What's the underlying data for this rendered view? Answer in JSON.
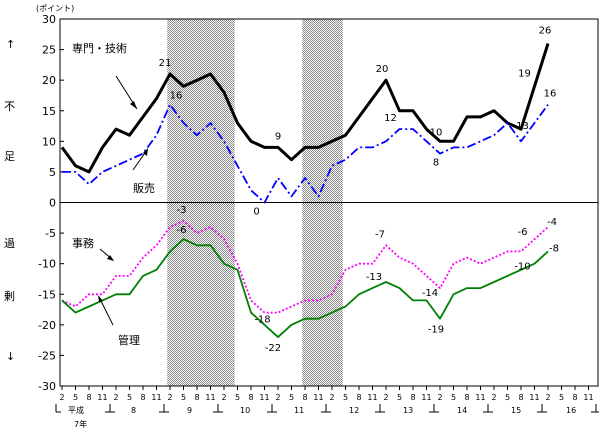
{
  "chart_data": {
    "type": "line",
    "unit": "(ポイント)",
    "ylim": [
      -30,
      30
    ],
    "yticks": [
      30,
      25,
      20,
      15,
      10,
      5,
      0,
      -5,
      -10,
      -15,
      -20,
      -25,
      -30
    ],
    "y_side_chars": [
      "↑",
      "不",
      "足",
      "過",
      "剰",
      "↓"
    ],
    "x_tick_labels": [
      "2",
      "5",
      "8",
      "11",
      "2",
      "5",
      "8",
      "11",
      "2",
      "5",
      "8",
      "11",
      "2",
      "5",
      "8",
      "11",
      "2",
      "5",
      "8",
      "11",
      "2",
      "5",
      "8",
      "11",
      "2",
      "5",
      "8",
      "11",
      "2",
      "5",
      "8",
      "11",
      "2",
      "5",
      "8",
      "11",
      "2",
      "5",
      "8",
      "11"
    ],
    "year_labels": [
      "平成",
      "7年",
      "8",
      "9",
      "10",
      "11",
      "12",
      "13",
      "14",
      "15",
      "16"
    ],
    "recession_bands": [
      [
        8,
        13
      ],
      [
        18,
        21
      ]
    ],
    "series": [
      {
        "name": "専門・技術",
        "color": "#000000",
        "style": "solid",
        "values": [
          9,
          6,
          5,
          9,
          12,
          11,
          14,
          17,
          21,
          19,
          20,
          21,
          18,
          13,
          10,
          9,
          9,
          7,
          9,
          9,
          10,
          11,
          14,
          17,
          20,
          15,
          15,
          12,
          10,
          10,
          14,
          14,
          15,
          13,
          12,
          19,
          26
        ]
      },
      {
        "name": "販売",
        "color": "#0000ff",
        "style": "dashdot",
        "values": [
          5,
          5,
          3,
          5,
          6,
          7,
          8,
          11,
          16,
          13,
          11,
          13,
          10,
          6,
          2,
          0,
          4,
          1,
          4,
          1,
          6,
          7,
          9,
          9,
          10,
          12,
          12,
          10,
          8,
          9,
          9,
          10,
          11,
          13,
          10,
          13,
          16
        ]
      },
      {
        "name": "事務",
        "color": "#ff00ff",
        "style": "dotted",
        "values": [
          -16,
          -17,
          -15,
          -15,
          -12,
          -12,
          -9,
          -7,
          -4,
          -3,
          -5,
          -4,
          -6,
          -10,
          -16,
          -18,
          -18,
          -17,
          -16,
          -16,
          -15,
          -11,
          -10,
          -10,
          -7,
          -9,
          -10,
          -12,
          -14,
          -10,
          -9,
          -10,
          -9,
          -8,
          -8,
          -6,
          -4
        ]
      },
      {
        "name": "管理",
        "color": "#008000",
        "style": "solid",
        "values": [
          -16,
          -18,
          -17,
          -16,
          -15,
          -15,
          -12,
          -11,
          -8,
          -6,
          -7,
          -7,
          -10,
          -11,
          -18,
          -20,
          -22,
          -20,
          -19,
          -19,
          -18,
          -17,
          -15,
          -14,
          -13,
          -14,
          -16,
          -16,
          -19,
          -15,
          -14,
          -14,
          -13,
          -12,
          -11,
          -10,
          -8
        ]
      }
    ],
    "annotations": [
      {
        "text": "21",
        "series": 0,
        "index": 8,
        "dx": -5,
        "dy": -8
      },
      {
        "text": "9",
        "series": 0,
        "index": 16,
        "dx": 0,
        "dy": -8
      },
      {
        "text": "20",
        "series": 0,
        "index": 24,
        "dx": -4,
        "dy": -8
      },
      {
        "text": "10",
        "series": 0,
        "index": 28,
        "dx": -4,
        "dy": -6
      },
      {
        "text": "19",
        "series": 0,
        "index": 35,
        "dx": -10,
        "dy": -10
      },
      {
        "text": "26",
        "series": 0,
        "index": 36,
        "dx": -3,
        "dy": -10
      },
      {
        "text": "16",
        "series": 1,
        "index": 8,
        "dx": 6,
        "dy": -6
      },
      {
        "text": "0",
        "series": 1,
        "index": 15,
        "dx": -8,
        "dy": 12
      },
      {
        "text": "12",
        "series": 1,
        "index": 25,
        "dx": -9,
        "dy": -8
      },
      {
        "text": "8",
        "series": 1,
        "index": 28,
        "dx": -4,
        "dy": 12
      },
      {
        "text": "13",
        "series": 1,
        "index": 35,
        "dx": -12,
        "dy": 6
      },
      {
        "text": "16",
        "series": 1,
        "index": 36,
        "dx": 2,
        "dy": -8
      },
      {
        "text": "-3",
        "series": 2,
        "index": 9,
        "dx": -2,
        "dy": -8
      },
      {
        "text": "-18",
        "series": 2,
        "index": 15,
        "dx": -2,
        "dy": 10
      },
      {
        "text": "-7",
        "series": 2,
        "index": 24,
        "dx": -6,
        "dy": -8
      },
      {
        "text": "-14",
        "series": 2,
        "index": 28,
        "dx": -10,
        "dy": 8
      },
      {
        "text": "-6",
        "series": 2,
        "index": 35,
        "dx": -12,
        "dy": -4
      },
      {
        "text": "-4",
        "series": 2,
        "index": 36,
        "dx": 4,
        "dy": -2
      },
      {
        "text": "-6",
        "series": 3,
        "index": 9,
        "dx": -2,
        "dy": -6
      },
      {
        "text": "-22",
        "series": 3,
        "index": 16,
        "dx": -5,
        "dy": 14
      },
      {
        "text": "-13",
        "series": 3,
        "index": 24,
        "dx": -12,
        "dy": -2
      },
      {
        "text": "-19",
        "series": 3,
        "index": 28,
        "dx": -4,
        "dy": 14
      },
      {
        "text": "-10",
        "series": 3,
        "index": 35,
        "dx": -12,
        "dy": 6
      },
      {
        "text": "-8",
        "series": 3,
        "index": 36,
        "dx": 6,
        "dy": 0
      }
    ]
  }
}
